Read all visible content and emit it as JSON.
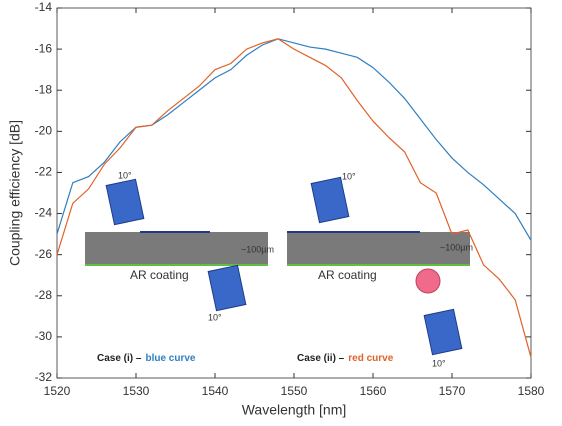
{
  "chart_data": {
    "type": "line",
    "xlabel": "Wavelength [nm]",
    "ylabel": "Coupling efficiency [dB]",
    "x": [
      1520,
      1522,
      1524,
      1526,
      1528,
      1530,
      1532,
      1534,
      1536,
      1538,
      1540,
      1542,
      1544,
      1546,
      1548,
      1550,
      1552,
      1554,
      1556,
      1558,
      1560,
      1562,
      1564,
      1566,
      1568,
      1570,
      1572,
      1574,
      1576,
      1578,
      1580
    ],
    "series": [
      {
        "name": "blue curve",
        "color": "#2f7fc1",
        "values": [
          -25,
          -22.5,
          -22.2,
          -21.5,
          -20.5,
          -19.8,
          -19.7,
          -19.2,
          -18.6,
          -18.0,
          -17.4,
          -17.0,
          -16.3,
          -15.8,
          -15.5,
          -15.7,
          -15.9,
          -16.0,
          -16.2,
          -16.4,
          -16.9,
          -17.6,
          -18.4,
          -19.4,
          -20.4,
          -21.3,
          -22.0,
          -22.6,
          -23.3,
          -24.0,
          -25.3
        ]
      },
      {
        "name": "red curve",
        "color": "#e0622a",
        "values": [
          -26,
          -23.5,
          -22.8,
          -21.6,
          -20.8,
          -19.8,
          -19.7,
          -19.0,
          -18.4,
          -17.8,
          -17.0,
          -16.7,
          -16.0,
          -15.7,
          -15.5,
          -16.0,
          -16.4,
          -16.8,
          -17.4,
          -18.5,
          -19.5,
          -20.3,
          -21.0,
          -22.5,
          -23.0,
          -25.0,
          -24.8,
          -26.5,
          -27.2,
          -28.2,
          -31
        ]
      }
    ],
    "xlim": [
      1520,
      1580
    ],
    "xticks": [
      1520,
      1530,
      1540,
      1550,
      1560,
      1570,
      1580
    ],
    "ylim": [
      -32,
      -14
    ],
    "yticks": [
      -32,
      -30,
      -28,
      -26,
      -24,
      -22,
      -20,
      -18,
      -16,
      -14
    ],
    "inset_labels": [
      "10°",
      "~100µm",
      "AR coating",
      "10°",
      "10°",
      "~100µm",
      "AR coating",
      "10°"
    ],
    "case_labels": [
      {
        "case": "Case (i) –",
        "curve": "blue curve"
      },
      {
        "case": "Case (ii) –",
        "curve": "red curve"
      }
    ]
  }
}
